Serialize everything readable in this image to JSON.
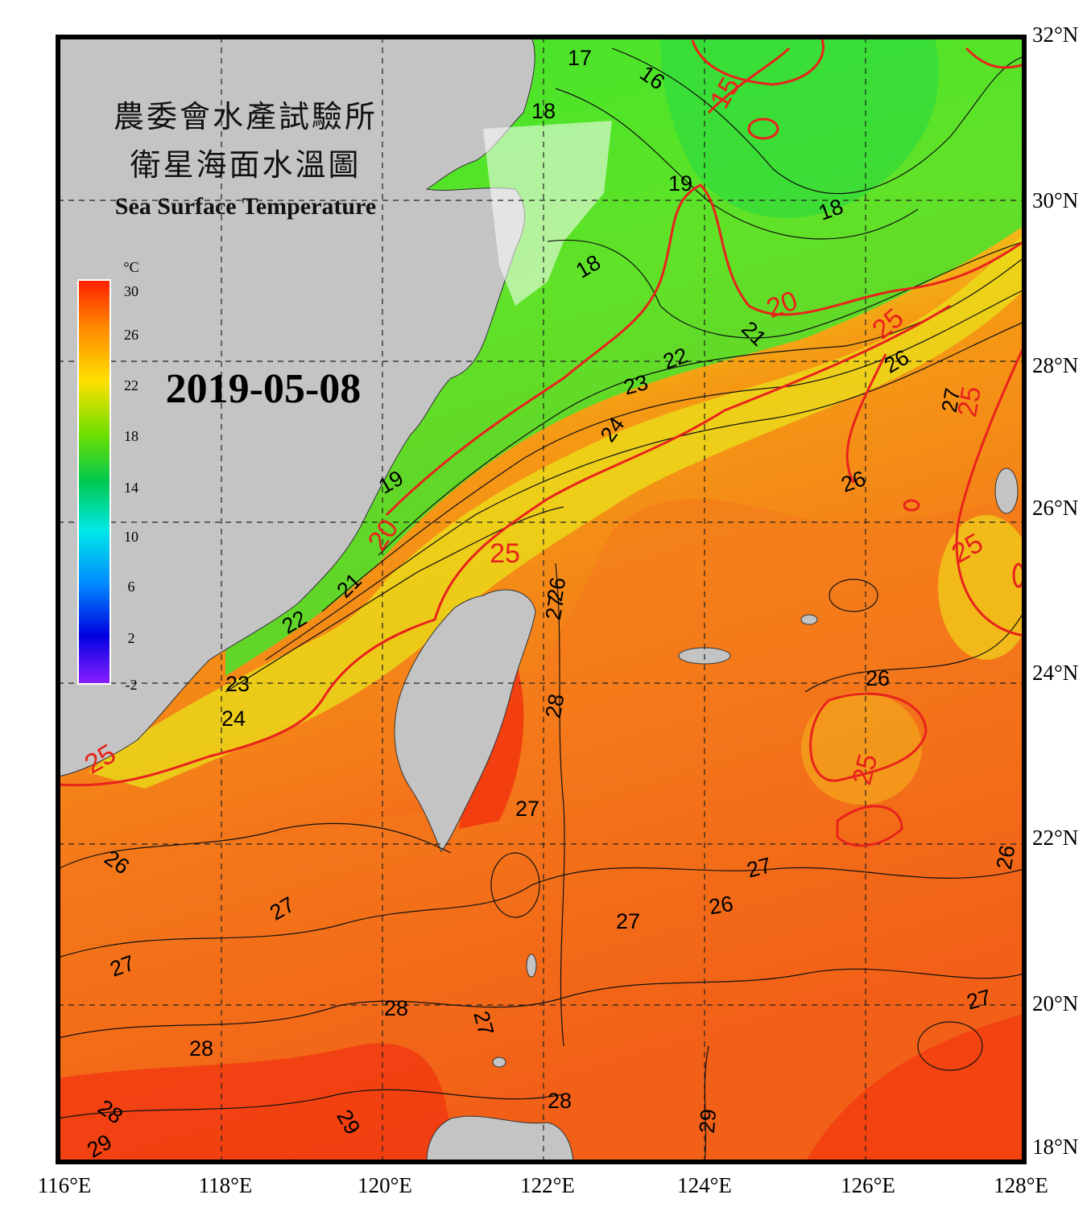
{
  "title": {
    "line1": "農委會水產試驗所",
    "line2": "衛星海面水溫圖",
    "line3": "Sea Surface Temperature"
  },
  "date": "2019-05-08",
  "colorbar": {
    "unit": "°C",
    "ticks": [
      "30",
      "26",
      "22",
      "18",
      "14",
      "10",
      "6",
      "2",
      "-2"
    ],
    "min": -2,
    "max": 30
  },
  "axes": {
    "lon_labels": [
      "116°E",
      "118°E",
      "120°E",
      "122°E",
      "124°E",
      "126°E",
      "128°E"
    ],
    "lat_labels": [
      "32°N",
      "30°N",
      "28°N",
      "26°N",
      "24°N",
      "22°N",
      "20°N",
      "18°N"
    ],
    "lon_range": [
      116,
      128
    ],
    "lat_range": [
      18,
      32
    ]
  },
  "isotherm_labels": {
    "black": [
      "17",
      "16",
      "18",
      "19",
      "18",
      "18",
      "21",
      "22",
      "23",
      "24",
      "19",
      "21",
      "22",
      "23",
      "24",
      "26",
      "26",
      "27",
      "26",
      "26",
      "27",
      "28",
      "27",
      "26",
      "26",
      "27",
      "27",
      "27",
      "26",
      "27",
      "28",
      "27",
      "27",
      "28",
      "28",
      "28",
      "29",
      "29"
    ],
    "red": [
      "15",
      "20",
      "25",
      "20",
      "25",
      "25",
      "25",
      "25",
      "25"
    ]
  },
  "colors": {
    "land": "#c4c4c4",
    "frame": "#000000",
    "red_isotherm": "#e8231c"
  }
}
